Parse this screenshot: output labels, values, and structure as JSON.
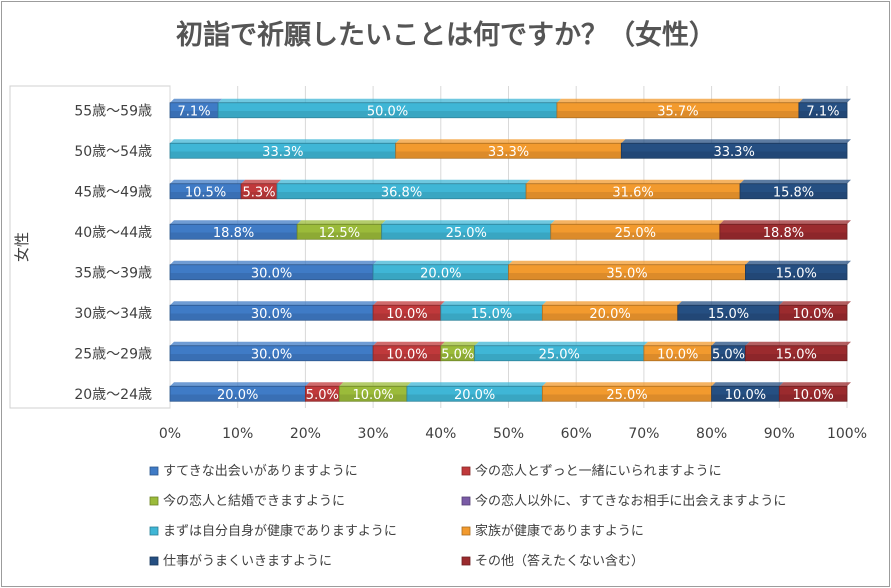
{
  "chart_data": {
    "type": "bar",
    "orientation": "horizontal",
    "stacked": "percent",
    "title": "初詣で祈願したいことは何ですか？（女性）",
    "ylabel": "女性",
    "xlim": [
      0,
      100
    ],
    "x_ticks": [
      "0%",
      "10%",
      "20%",
      "30%",
      "40%",
      "50%",
      "60%",
      "70%",
      "80%",
      "90%",
      "100%"
    ],
    "categories": [
      "55歳～59歳",
      "50歳～54歳",
      "45歳～49歳",
      "40歳～44歳",
      "35歳～39歳",
      "30歳～34歳",
      "25歳～29歳",
      "20歳～24歳"
    ],
    "series": [
      {
        "name": "すてきな出会いがありますように",
        "color": "#3f7bc6",
        "values": [
          7.1,
          0,
          10.5,
          18.8,
          30.0,
          30.0,
          30.0,
          20.0
        ]
      },
      {
        "name": "今の恋人とずっと一緒にいられますように",
        "color": "#c0393b",
        "values": [
          0,
          0,
          5.3,
          0,
          0,
          10.0,
          10.0,
          5.0
        ]
      },
      {
        "name": "今の恋人と結婚できますように",
        "color": "#9bbb3a",
        "values": [
          0,
          0,
          0,
          12.5,
          0,
          0,
          5.0,
          10.0
        ]
      },
      {
        "name": "今の恋人以外に、すてきなお相手に出会えますように",
        "color": "#7a5ba6",
        "values": [
          0,
          0,
          0,
          0,
          0,
          0,
          0,
          0
        ]
      },
      {
        "name": "まずは自分自身が健康でありますように",
        "color": "#3fb6d6",
        "values": [
          50.0,
          33.3,
          36.8,
          25.0,
          20.0,
          15.0,
          25.0,
          20.0
        ]
      },
      {
        "name": "家族が健康でありますように",
        "color": "#f29a2e",
        "values": [
          35.7,
          33.3,
          31.6,
          25.0,
          35.0,
          20.0,
          10.0,
          25.0
        ]
      },
      {
        "name": "仕事がうまくいきますように",
        "color": "#254f82",
        "values": [
          7.1,
          33.3,
          15.8,
          0,
          15.0,
          15.0,
          5.0,
          10.0
        ]
      },
      {
        "name": "その他（答えたくない含む）",
        "color": "#9b2b2e",
        "values": [
          0,
          0,
          0,
          18.8,
          0,
          10.0,
          15.0,
          10.0
        ]
      }
    ],
    "data_labels": [
      [
        "7.1%",
        "",
        "",
        "",
        "50.0%",
        "35.7%",
        "7.1%",
        ""
      ],
      [
        "",
        "",
        "",
        "",
        "33.3%",
        "33.3%",
        "33.3%",
        ""
      ],
      [
        "10.5%",
        "5.3%",
        "",
        "",
        "36.8%",
        "31.6%",
        "15.8%",
        ""
      ],
      [
        "18.8%",
        "",
        "12.5%",
        "",
        "25.0%",
        "25.0%",
        "",
        "18.8%"
      ],
      [
        "30.0%",
        "",
        "",
        "",
        "20.0%",
        "35.0%",
        "15.0%",
        ""
      ],
      [
        "30.0%",
        "10.0%",
        "",
        "",
        "15.0%",
        "20.0%",
        "15.0%",
        "10.0%"
      ],
      [
        "30.0%",
        "10.0%",
        "5.0%",
        "",
        "25.0%",
        "10.0%",
        "5.0%",
        "15.0%"
      ],
      [
        "20.0%",
        "5.0%",
        "10.0%",
        "",
        "20.0%",
        "25.0%",
        "10.0%",
        "10.0%"
      ]
    ],
    "grid": true,
    "legend": "bottom"
  }
}
